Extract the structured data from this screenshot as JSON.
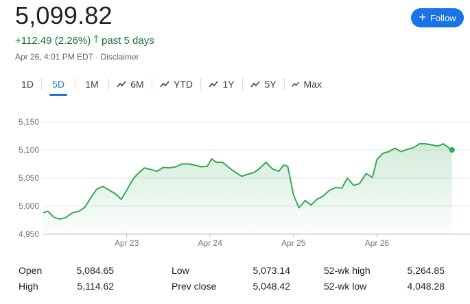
{
  "quote": {
    "price": "5,099.82",
    "change": "+112.49 (2.26%)",
    "period": "past 5 days",
    "timestamp": "Apr 26, 4:01 PM EDT",
    "disclaimer": "Disclaimer",
    "positive_color": "#137333"
  },
  "follow_button": {
    "label": "Follow",
    "icon": "plus-icon",
    "color": "#1a73e8"
  },
  "tabs": [
    {
      "label": "1D",
      "active": false,
      "icon": ""
    },
    {
      "label": "5D",
      "active": true,
      "icon": ""
    },
    {
      "label": "1M",
      "active": false,
      "icon": ""
    },
    {
      "label": "6M",
      "active": false,
      "icon": "trend-icon"
    },
    {
      "label": "YTD",
      "active": false,
      "icon": "trend-icon"
    },
    {
      "label": "1Y",
      "active": false,
      "icon": "trend-icon"
    },
    {
      "label": "5Y",
      "active": false,
      "icon": "trend-icon"
    },
    {
      "label": "Max",
      "active": false,
      "icon": "trend-icon"
    }
  ],
  "chart_data": {
    "type": "area",
    "y_ticks": [
      "5,150",
      "5,100",
      "5,050",
      "5,000",
      "4,950"
    ],
    "y_tick_values": [
      5150,
      5100,
      5050,
      5000,
      4950
    ],
    "ylim": [
      4950,
      5150
    ],
    "xlim": [
      0,
      100
    ],
    "x_ticks": [
      {
        "label": "Apr 23",
        "x": 20
      },
      {
        "label": "Apr 24",
        "x": 40
      },
      {
        "label": "Apr 25",
        "x": 60
      },
      {
        "label": "Apr 26",
        "x": 80
      }
    ],
    "line_color": "#34a853",
    "grid": true,
    "series": [
      {
        "x": [
          0,
          1.1,
          2.6,
          4,
          5.3,
          7,
          8.6,
          10,
          11.4,
          12.8,
          14.3,
          15.9,
          17.3,
          18.7,
          20,
          21.5,
          23,
          24.3,
          25.8,
          27.3,
          28.8,
          30.3,
          31.8,
          33.2,
          34.8,
          36.3,
          37.8,
          39.3,
          40.4,
          41.5,
          43,
          44.6,
          46.1,
          47.6,
          49.1,
          50.6,
          52,
          53.4,
          55,
          56.5,
          57.6,
          58.6,
          60,
          61.3,
          62.8,
          64.2,
          65.6,
          67.1,
          68.6,
          70.1,
          71.6,
          72.9,
          74.4,
          75.8,
          77.4,
          78.9,
          80,
          81.4,
          82.8,
          84.3,
          85.8,
          87.2,
          88.7,
          90.2,
          91.6,
          93.1,
          94.6,
          95.9,
          98
        ],
        "values": [
          4988,
          4991,
          4980,
          4977,
          4979,
          4988,
          4991,
          4998,
          5015,
          5030,
          5035,
          5028,
          5022,
          5012,
          5028,
          5048,
          5060,
          5068,
          5065,
          5062,
          5069,
          5068,
          5070,
          5075,
          5075,
          5073,
          5070,
          5071,
          5084,
          5078,
          5078,
          5068,
          5060,
          5053,
          5057,
          5060,
          5068,
          5078,
          5066,
          5062,
          5073,
          5071,
          5020,
          4997,
          5010,
          5002,
          5012,
          5018,
          5028,
          5033,
          5032,
          5050,
          5037,
          5040,
          5058,
          5051,
          5083,
          5094,
          5097,
          5103,
          5097,
          5101,
          5104,
          5111,
          5111,
          5109,
          5107,
          5111,
          5100
        ]
      }
    ]
  },
  "stats": [
    {
      "label": "Open",
      "value": "5,084.65"
    },
    {
      "label": "High",
      "value": "5,114.62"
    },
    {
      "label": "Low",
      "value": "5,073.14"
    },
    {
      "label": "Prev close",
      "value": "5,048.42"
    },
    {
      "label": "52-wk high",
      "value": "5,264.85"
    },
    {
      "label": "52-wk low",
      "value": "4,048.28"
    }
  ]
}
